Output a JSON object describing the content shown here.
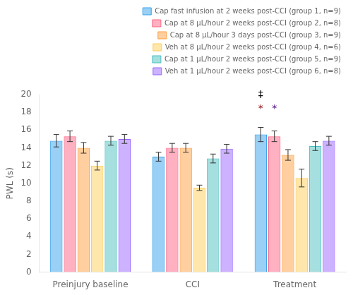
{
  "chart_data": {
    "type": "bar",
    "categories": [
      "Preinjury baseline",
      "CCI",
      "Treatment"
    ],
    "series": [
      {
        "name": "Cap fast infusion at 2 weeks post-CCI (group 1, n=9)",
        "values": [
          14.8,
          13.0,
          15.5
        ],
        "errors": [
          0.7,
          0.5,
          0.8
        ]
      },
      {
        "name": "Cap at 8 μL/hour 2 weeks post-CCI (group 2, n=8)",
        "values": [
          15.3,
          14.0,
          15.3
        ],
        "errors": [
          0.6,
          0.5,
          0.6
        ]
      },
      {
        "name": "Cap at 8 μL/hour 3 days post-CCI (group 3, n=9)",
        "values": [
          14.0,
          14.0,
          13.2
        ],
        "errors": [
          0.6,
          0.5,
          0.6
        ]
      },
      {
        "name": "Veh at 8 μL/hour 2 weeks post-CCI (group 4, n=6)",
        "values": [
          12.0,
          9.5,
          10.6
        ],
        "errors": [
          0.5,
          0.3,
          1.0
        ]
      },
      {
        "name": "Cap at 1 μL/hour 2 weeks post-CCI (group 5, n=9)",
        "values": [
          14.8,
          12.8,
          14.2
        ],
        "errors": [
          0.5,
          0.5,
          0.5
        ]
      },
      {
        "name": "Veh at 1 μL/hour 2 weeks post-CCI (group 6, n=8)",
        "values": [
          15.0,
          13.9,
          14.8
        ],
        "errors": [
          0.5,
          0.5,
          0.5
        ]
      }
    ],
    "ylabel": "PWL (s)",
    "ylim": [
      0,
      20
    ],
    "yticks": [
      0,
      2,
      4,
      6,
      8,
      10,
      12,
      14,
      16,
      18,
      20
    ],
    "grid": false,
    "legend": "upper right",
    "annotations": [
      {
        "text": "‡",
        "category": "Treatment",
        "series": "Cap fast infusion at 2 weeks post-CCI (group 1, n=9)",
        "y": 19.4,
        "color": "black"
      },
      {
        "text": "*",
        "category": "Treatment",
        "series": "Cap fast infusion at 2 weeks post-CCI (group 1, n=9)",
        "y": 17.8,
        "color": "#8B0000"
      },
      {
        "text": "*",
        "category": "Treatment",
        "series": "Cap at 8 μL/hour 2 weeks post-CCI (group 2, n=8)",
        "y": 17.8,
        "color": "#4B0082"
      }
    ]
  }
}
